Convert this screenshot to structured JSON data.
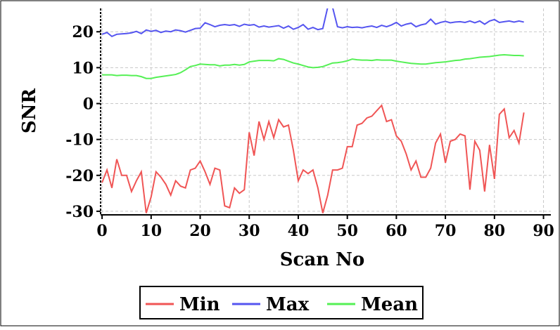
{
  "chart_data": {
    "type": "line",
    "x_label": "Scan No",
    "y_label": "SNR",
    "x": [
      0,
      1,
      2,
      3,
      4,
      5,
      6,
      7,
      8,
      9,
      10,
      11,
      12,
      13,
      14,
      15,
      16,
      17,
      18,
      19,
      20,
      21,
      22,
      23,
      24,
      25,
      26,
      27,
      28,
      29,
      30,
      31,
      32,
      33,
      34,
      35,
      36,
      37,
      38,
      39,
      40,
      41,
      42,
      43,
      44,
      45,
      46,
      47,
      48,
      49,
      50,
      51,
      52,
      53,
      54,
      55,
      56,
      57,
      58,
      59,
      60,
      61,
      62,
      63,
      64,
      65,
      66,
      67,
      68,
      69,
      70,
      71,
      72,
      73,
      74,
      75,
      76,
      77,
      78,
      79,
      80,
      81,
      82,
      83,
      84,
      85,
      86
    ],
    "series": [
      {
        "name": "Min",
        "color": "#f05555",
        "values": [
          -22,
          -18.5,
          -23.5,
          -15.5,
          -20,
          -20,
          -24.5,
          -21.5,
          -19,
          -30.5,
          -26,
          -19,
          -20.5,
          -22.5,
          -25.5,
          -21.5,
          -23,
          -23.5,
          -18.5,
          -18,
          -16,
          -19,
          -22.5,
          -18,
          -18.5,
          -28.5,
          -29,
          -23.5,
          -25,
          -24,
          -8,
          -14.5,
          -5,
          -10,
          -5,
          -9.5,
          -4.5,
          -6.5,
          -6,
          -13,
          -21.5,
          -18.5,
          -19.5,
          -18.5,
          -23.5,
          -30.5,
          -25.5,
          -18.5,
          -18.5,
          -18,
          -12,
          -12,
          -6,
          -5.5,
          -4,
          -3.5,
          -2,
          -0.5,
          -5,
          -4.5,
          -9,
          -10.5,
          -14,
          -18.5,
          -16,
          -20.5,
          -20.5,
          -18,
          -11,
          -8.5,
          -16.5,
          -10.5,
          -10,
          -8.5,
          -9,
          -24,
          -10.5,
          -13,
          -24.5,
          -11.5,
          -21,
          -3,
          -1.5,
          -9.5,
          -7.5,
          -11,
          -2.5
        ]
      },
      {
        "name": "Max",
        "color": "#5555f0",
        "values": [
          19.3,
          19.8,
          18.7,
          19.3,
          19.4,
          19.5,
          19.7,
          20.1,
          19.5,
          20.5,
          20.1,
          20.4,
          19.8,
          20.2,
          20,
          20.5,
          20.3,
          19.9,
          20.4,
          20.9,
          21,
          22.5,
          22,
          21.4,
          21.8,
          22,
          21.8,
          22,
          21.5,
          22.1,
          21.8,
          22,
          21.3,
          21.6,
          21.3,
          21.5,
          21.7,
          21,
          21.6,
          20.7,
          21.2,
          22,
          20.7,
          21.2,
          20.6,
          20.9,
          26.8,
          26.8,
          21.4,
          21.1,
          21.4,
          21.2,
          21.3,
          21.1,
          21.4,
          21.6,
          21.2,
          21.8,
          21.4,
          21.9,
          22.6,
          21.6,
          22.1,
          22.4,
          21.4,
          21.9,
          22.2,
          23.5,
          22.1,
          22.6,
          22.9,
          22.5,
          22.7,
          22.8,
          22.6,
          23,
          22.5,
          23,
          22.1,
          23,
          23.4,
          22.6,
          22.8,
          23,
          22.7,
          23,
          22.7
        ]
      },
      {
        "name": "Mean",
        "color": "#55f055",
        "values": [
          8,
          8,
          8,
          7.8,
          7.9,
          7.9,
          7.8,
          7.8,
          7.5,
          7,
          7,
          7.3,
          7.5,
          7.7,
          7.9,
          8.1,
          8.6,
          9.4,
          10.3,
          10.6,
          11,
          10.9,
          10.8,
          10.8,
          10.5,
          10.7,
          10.7,
          10.9,
          10.7,
          10.9,
          11.6,
          11.8,
          12,
          12,
          12,
          11.9,
          12.5,
          12.3,
          11.8,
          11.3,
          11,
          10.6,
          10.2,
          10,
          10.1,
          10.3,
          10.8,
          11.3,
          11.4,
          11.6,
          11.9,
          12.4,
          12.2,
          12.1,
          12.1,
          12,
          12.2,
          12.1,
          12.1,
          12.1,
          11.8,
          11.6,
          11.4,
          11.2,
          11.1,
          11,
          11,
          11.2,
          11.4,
          11.5,
          11.6,
          11.8,
          12,
          12.1,
          12.4,
          12.5,
          12.7,
          12.9,
          13,
          13.1,
          13.3,
          13.5,
          13.6,
          13.5,
          13.4,
          13.4,
          13.3
        ]
      }
    ],
    "xlim": [
      -0.3,
      91.5
    ],
    "ylim": [
      -31,
      26.5
    ],
    "xticks": [
      0,
      10,
      20,
      30,
      40,
      50,
      60,
      70,
      80,
      90
    ],
    "yticks": [
      -30,
      -20,
      -10,
      0,
      10,
      20
    ],
    "grid": true,
    "legend": "bottom"
  }
}
